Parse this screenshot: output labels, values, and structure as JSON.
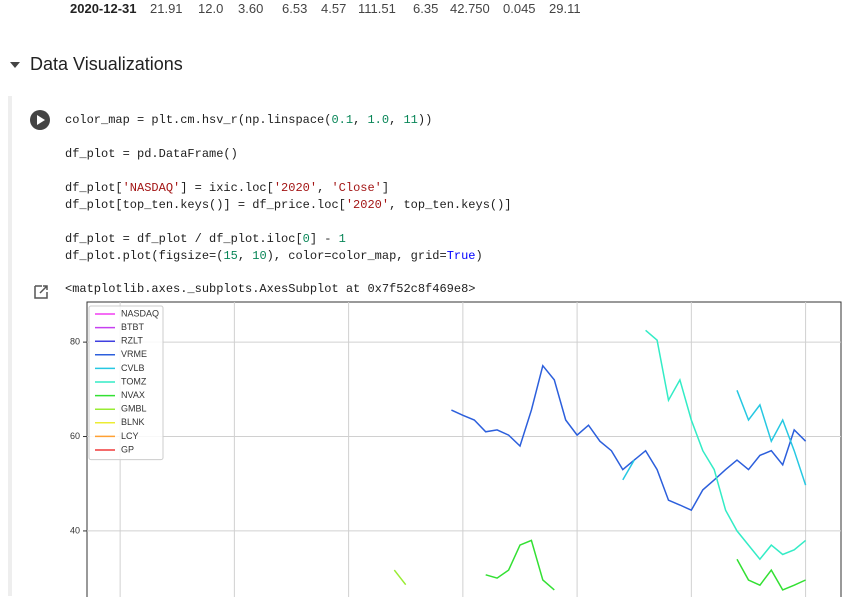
{
  "table_row": {
    "date": "2020-12-31",
    "cells": [
      "21.91",
      "12.0",
      "3.60",
      "6.53",
      "4.57",
      "111.51",
      "6.35",
      "42.750",
      "0.045",
      "29.11"
    ]
  },
  "section": {
    "title": "Data Visualizations"
  },
  "code_cell": {
    "blocks": [
      [
        "color_map = plt.cm.hsv_r(np.linspace(0.1, 1.0, 11))"
      ],
      [
        "df_plot = pd.DataFrame()"
      ],
      [
        "df_plot['NASDAQ'] = ixic.loc['2020', 'Close']",
        "df_plot[top_ten.keys()] = df_price.loc['2020', top_ten.keys()]"
      ],
      [
        "df_plot = df_plot / df_plot.iloc[0] - 1",
        "df_plot.plot(figsize=(15, 10), color=color_map, grid=True)"
      ]
    ],
    "output": "<matplotlib.axes._subplots.AxesSubplot at 0x7f52c8f469e8>"
  },
  "chart_data": {
    "type": "line",
    "legend": "upper left",
    "grid": true,
    "xlim": [
      -0.29,
      6.31
    ],
    "xticks": [
      0,
      1,
      2,
      3,
      4,
      5,
      6
    ],
    "ylim": [
      26,
      88.5
    ],
    "yticks": [
      40,
      60,
      80
    ],
    "x": [
      2.4,
      2.5,
      2.6,
      2.7,
      2.8,
      2.9,
      3.0,
      3.1,
      3.2,
      3.3,
      3.4,
      3.5,
      3.6,
      3.7,
      3.8,
      3.9,
      4.0,
      4.1,
      4.2,
      4.3,
      4.4,
      4.5,
      4.6,
      4.7,
      4.8,
      4.9,
      5.0,
      5.1,
      5.2,
      5.3,
      5.4,
      5.5,
      5.6,
      5.7,
      5.8,
      5.9,
      6.0
    ],
    "series": [
      {
        "name": "NASDAQ",
        "color": "#f23ff2",
        "values": [
          null,
          null,
          null,
          null,
          null,
          null,
          null,
          null,
          null,
          null,
          null,
          null,
          null,
          null,
          null,
          null,
          null,
          null,
          null,
          null,
          null,
          null,
          null,
          null,
          null,
          null,
          null,
          null,
          null,
          null,
          null,
          null,
          null,
          null,
          null,
          null,
          null
        ]
      },
      {
        "name": "BTBT",
        "color": "#c640f0",
        "values": [
          null,
          null,
          null,
          null,
          null,
          null,
          null,
          null,
          null,
          null,
          null,
          null,
          null,
          null,
          null,
          null,
          null,
          null,
          null,
          null,
          null,
          null,
          null,
          null,
          null,
          null,
          null,
          null,
          null,
          null,
          null,
          null,
          null,
          null,
          null,
          null,
          null
        ]
      },
      {
        "name": "RZLT",
        "color": "#3f3fe0",
        "values": [
          null,
          null,
          null,
          null,
          null,
          null,
          null,
          null,
          null,
          null,
          null,
          null,
          null,
          null,
          null,
          null,
          null,
          null,
          null,
          null,
          null,
          null,
          null,
          null,
          null,
          null,
          null,
          null,
          null,
          null,
          null,
          null,
          null,
          null,
          null,
          null,
          null
        ]
      },
      {
        "name": "VRME",
        "color": "#2c5fdc",
        "values": [
          null,
          null,
          null,
          null,
          null,
          65.6,
          64.5,
          63.5,
          61,
          61.4,
          60.3,
          58,
          65.6,
          75,
          72,
          63.5,
          60.3,
          62.4,
          59,
          57,
          53,
          55,
          57,
          53,
          46.5,
          45.5,
          44.4,
          48.7,
          50.8,
          53,
          55,
          53,
          56,
          57,
          54,
          61.4,
          59
        ]
      },
      {
        "name": "CVLB",
        "color": "#26c8e2",
        "values": [
          null,
          null,
          null,
          null,
          null,
          null,
          null,
          null,
          null,
          null,
          null,
          null,
          null,
          null,
          null,
          null,
          null,
          null,
          null,
          null,
          50.8,
          55,
          null,
          null,
          null,
          null,
          null,
          null,
          null,
          null,
          69.8,
          63.5,
          66.7,
          59,
          63.5,
          57,
          49.7
        ]
      },
      {
        "name": "TOMZ",
        "color": "#33ecc6",
        "values": [
          null,
          null,
          null,
          null,
          null,
          null,
          null,
          null,
          null,
          null,
          null,
          null,
          null,
          null,
          null,
          null,
          null,
          null,
          null,
          null,
          null,
          null,
          82.5,
          80.4,
          67.7,
          72,
          63.5,
          57,
          53,
          44.4,
          40,
          37,
          34,
          37,
          35,
          36,
          38
        ]
      },
      {
        "name": "NVAX",
        "color": "#33e033",
        "values": [
          null,
          null,
          null,
          null,
          null,
          null,
          null,
          null,
          30.7,
          30,
          31.7,
          37,
          38,
          29.6,
          27.5,
          null,
          null,
          null,
          null,
          null,
          null,
          null,
          null,
          null,
          null,
          null,
          null,
          null,
          null,
          null,
          34,
          29.6,
          28.5,
          31.7,
          27.5,
          28.5,
          29.6
        ]
      },
      {
        "name": "GMBL",
        "color": "#99ec33",
        "values": [
          31.7,
          28.6,
          null,
          null,
          null,
          null,
          null,
          null,
          null,
          null,
          null,
          null,
          null,
          null,
          null,
          null,
          null,
          null,
          null,
          null,
          null,
          null,
          null,
          null,
          null,
          null,
          null,
          null,
          null,
          null,
          null,
          null,
          null,
          null,
          null,
          null,
          null
        ]
      },
      {
        "name": "BLNK",
        "color": "#ecec33",
        "values": [
          null,
          null,
          null,
          null,
          null,
          null,
          null,
          null,
          null,
          null,
          null,
          null,
          null,
          null,
          null,
          null,
          null,
          null,
          null,
          null,
          null,
          null,
          null,
          null,
          null,
          null,
          null,
          null,
          null,
          null,
          null,
          null,
          null,
          null,
          null,
          null,
          null
        ]
      },
      {
        "name": "LCY",
        "color": "#ffa033",
        "values": [
          null,
          null,
          null,
          null,
          null,
          null,
          null,
          null,
          null,
          null,
          null,
          null,
          null,
          null,
          null,
          null,
          null,
          null,
          null,
          null,
          null,
          null,
          null,
          null,
          null,
          null,
          null,
          null,
          null,
          null,
          null,
          null,
          null,
          null,
          null,
          null,
          null
        ]
      },
      {
        "name": "GP",
        "color": "#f03a3a",
        "values": [
          null,
          null,
          null,
          null,
          null,
          null,
          null,
          null,
          null,
          null,
          null,
          null,
          null,
          null,
          null,
          null,
          null,
          null,
          null,
          null,
          null,
          null,
          null,
          null,
          null,
          null,
          null,
          null,
          null,
          null,
          null,
          null,
          null,
          null,
          null,
          null,
          null
        ]
      }
    ]
  }
}
